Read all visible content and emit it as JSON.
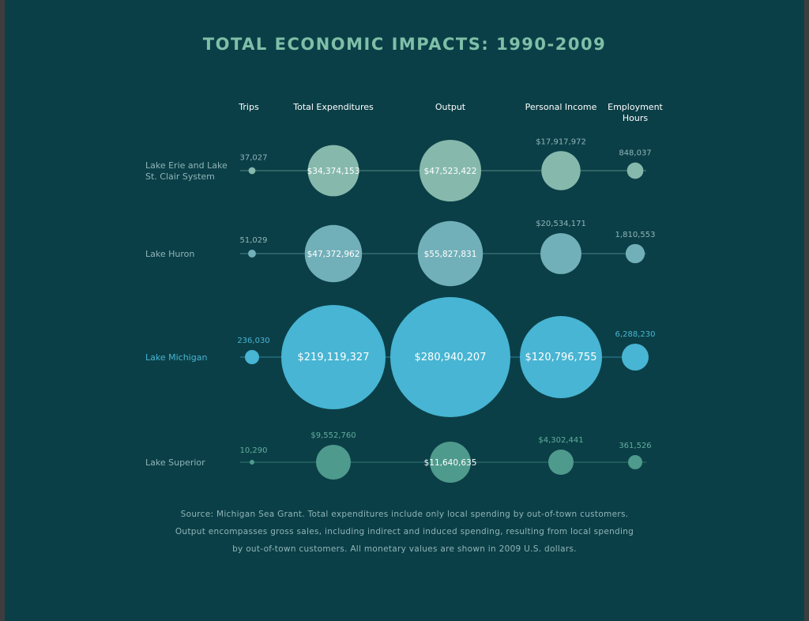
{
  "chart_data": {
    "type": "bubble",
    "title": "TOTAL ECONOMIC IMPACTS: 1990-2009",
    "columns": [
      "Trips",
      "Total Expenditures",
      "Output",
      "Personal Income",
      "Employment Hours"
    ],
    "rows": [
      {
        "name": "Lake Erie and Lake St. Clair System",
        "name_lines": [
          "Lake Erie and Lake",
          "St. Clair System"
        ],
        "color": "#86b9ac",
        "values": [
          37027,
          34374153,
          47523422,
          17917972,
          848037
        ],
        "labels": [
          "37,027",
          "$34,374,153",
          "$47,523,422",
          "$17,917,972",
          "848,037"
        ]
      },
      {
        "name": "Lake Huron",
        "name_lines": [
          "Lake Huron"
        ],
        "color": "#72b0b9",
        "values": [
          51029,
          47372962,
          55827831,
          20534171,
          1810553
        ],
        "labels": [
          "51,029",
          "$47,372,962",
          "$55,827,831",
          "$20,534,171",
          "1,810,553"
        ]
      },
      {
        "name": "Lake Michigan",
        "name_lines": [
          "Lake Michigan"
        ],
        "color": "#47b5d3",
        "values": [
          236030,
          219119327,
          280940207,
          120796755,
          6288230
        ],
        "labels": [
          "236,030",
          "$219,119,327",
          "$280,940,207",
          "$120,796,755",
          "6,288,230"
        ]
      },
      {
        "name": "Lake Superior",
        "name_lines": [
          "Lake Superior"
        ],
        "color": "#4e9a8c",
        "values": [
          10290,
          9552760,
          11640635,
          4302441,
          361526
        ],
        "labels": [
          "10,290",
          "$9,552,760",
          "$11,640,635",
          "$4,302,441",
          "361,526"
        ]
      }
    ]
  },
  "source": [
    "Source: Michigan Sea Grant. Total expenditures include only local spending by out-of-town customers.",
    "Output encompasses gross sales, including indirect and induced spending, resulting from local spending",
    "by out-of-town customers. All monetary values are shown in 2009 U.S. dollars."
  ],
  "colors": {
    "background": "#0b3f47",
    "title": "#7fbfa8",
    "text": "#8fb5b8"
  }
}
